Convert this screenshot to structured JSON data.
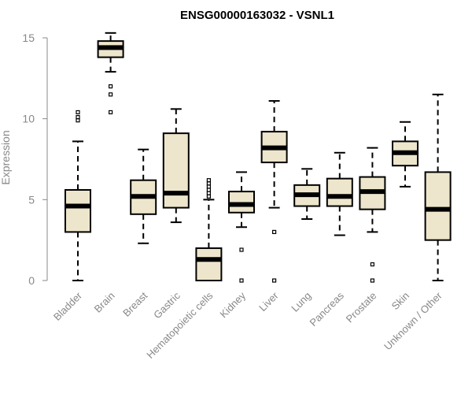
{
  "chart_data": {
    "type": "boxplot",
    "title": "ENSG00000163032 - VSNL1",
    "xlabel": "",
    "ylabel": "Expression",
    "ylim": [
      0,
      15
    ],
    "yticks": [
      0,
      5,
      10,
      15
    ],
    "box_fill": "#ede6cc",
    "categories": [
      "Bladder",
      "Brain",
      "Breast",
      "Gastric",
      "Hematopoietic cells",
      "Kidney",
      "Liver",
      "Lung",
      "Pancreas",
      "Prostate",
      "Skin",
      "Unknown / Other"
    ],
    "series": [
      {
        "name": "Bladder",
        "min": 0.0,
        "q1": 3.0,
        "median": 4.6,
        "q3": 5.6,
        "max": 8.6,
        "outliers": [
          9.9,
          10.1,
          10.4
        ]
      },
      {
        "name": "Brain",
        "min": 12.9,
        "q1": 13.8,
        "median": 14.4,
        "q3": 14.8,
        "max": 15.3,
        "outliers": [
          10.4,
          11.5,
          12.0
        ]
      },
      {
        "name": "Breast",
        "min": 2.3,
        "q1": 4.1,
        "median": 5.2,
        "q3": 6.2,
        "max": 8.1,
        "outliers": []
      },
      {
        "name": "Gastric",
        "min": 3.6,
        "q1": 4.5,
        "median": 5.4,
        "q3": 9.1,
        "max": 10.6,
        "outliers": []
      },
      {
        "name": "Hematopoietic cells",
        "min": 0.0,
        "q1": 0.0,
        "median": 1.3,
        "q3": 2.0,
        "max": 5.0,
        "outliers": [
          5.2,
          5.4,
          5.6,
          5.8,
          6.0,
          6.2
        ]
      },
      {
        "name": "Kidney",
        "min": 3.3,
        "q1": 4.2,
        "median": 4.7,
        "q3": 5.5,
        "max": 6.7,
        "outliers": [
          0.0,
          1.9
        ]
      },
      {
        "name": "Liver",
        "min": 4.5,
        "q1": 7.3,
        "median": 8.2,
        "q3": 9.2,
        "max": 11.1,
        "outliers": [
          0.0,
          3.0
        ]
      },
      {
        "name": "Lung",
        "min": 3.8,
        "q1": 4.6,
        "median": 5.3,
        "q3": 5.9,
        "max": 6.9,
        "outliers": []
      },
      {
        "name": "Pancreas",
        "min": 2.8,
        "q1": 4.6,
        "median": 5.2,
        "q3": 6.3,
        "max": 7.9,
        "outliers": []
      },
      {
        "name": "Prostate",
        "min": 3.0,
        "q1": 4.4,
        "median": 5.5,
        "q3": 6.4,
        "max": 8.2,
        "outliers": [
          0.0,
          1.0
        ]
      },
      {
        "name": "Skin",
        "min": 5.8,
        "q1": 7.1,
        "median": 7.9,
        "q3": 8.6,
        "max": 9.8,
        "outliers": []
      },
      {
        "name": "Unknown / Other",
        "min": 0.0,
        "q1": 2.5,
        "median": 4.4,
        "q3": 6.7,
        "max": 11.5,
        "outliers": []
      }
    ]
  }
}
